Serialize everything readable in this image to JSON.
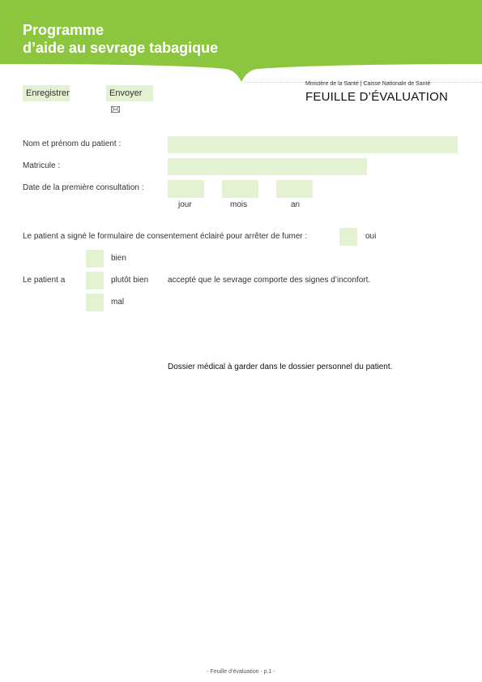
{
  "header": {
    "title_line1": "Programme",
    "title_line2": "d’aide au sevrage tabagique",
    "ministry": "Ministère de la Santé | Caisse Nationale de Santé",
    "doc_title": "FEUILLE D’ÉVALUATION",
    "brand_color": "#8cc63f"
  },
  "toolbar": {
    "save_label": "Enregistrer",
    "send_label": "Envoyer"
  },
  "form": {
    "name_label": "Nom et prénom du patient :",
    "name_value": "",
    "matricule_label": "Matricule :",
    "matricule_value": "",
    "first_consult_label": "Date de la première consultation :",
    "day_label": "jour",
    "month_label": "mois",
    "year_label": "an",
    "consent_label": "Le patient a signé le formulaire de consentement éclairé pour arrêter de fumer :",
    "consent_option": "oui",
    "acceptance_prefix": "Le patient a",
    "acceptance_options": [
      "bien",
      "plutôt bien",
      "mal"
    ],
    "acceptance_suffix": "accepté que le sevrage comporte des signes d’inconfort.",
    "note": "Dossier médical à garder dans le dossier personnel du patient."
  },
  "footer": {
    "page_label": "- Feuille d’évaluation - p.1 -"
  }
}
